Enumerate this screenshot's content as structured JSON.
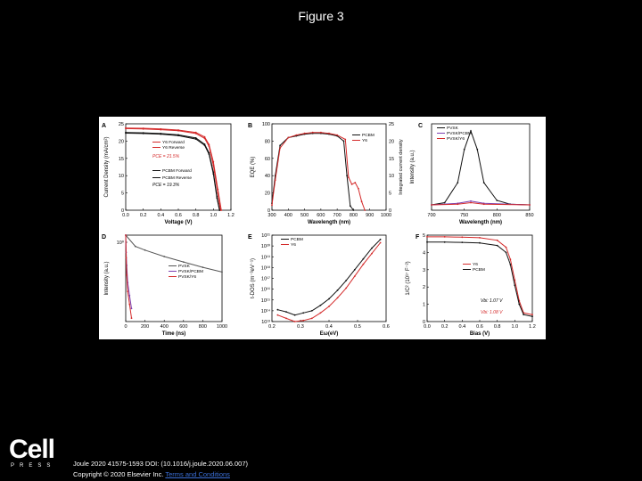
{
  "slide": {
    "title": "Figure 3"
  },
  "footer": {
    "logo_text": "Cell",
    "logo_sub": "PRESS",
    "citation": "Joule 2020 41575-1593 DOI: (10.1016/j.joule.2020.06.007)",
    "copyright_prefix": "Copyright © 2020 Elsevier Inc.",
    "copyright_link": "Terms and Conditions"
  },
  "colors": {
    "black": "#111111",
    "red": "#d42a2a",
    "purple": "#7b3fb0",
    "grey": "#555555"
  },
  "chart_data": [
    {
      "panel": "A",
      "type": "line",
      "xlabel": "Voltage (V)",
      "ylabel": "Current Density (mA/cm²)",
      "xlim": [
        0.0,
        1.2
      ],
      "ylim": [
        0,
        25
      ],
      "xticks": [
        "0.0",
        "0.2",
        "0.4",
        "0.6",
        "0.8",
        "1.0",
        "1.2"
      ],
      "yticks": [
        "0",
        "5",
        "10",
        "15",
        "20",
        "25"
      ],
      "annotations": [
        "PCE = 21.5%",
        "PCE = 19.3%"
      ],
      "series": [
        {
          "name": "Y6 Forward",
          "color": "red",
          "x": [
            0,
            0.2,
            0.4,
            0.6,
            0.8,
            0.9,
            0.95,
            1.0,
            1.05,
            1.08
          ],
          "y": [
            23.6,
            23.5,
            23.3,
            23.0,
            22.2,
            20.8,
            18.5,
            13.0,
            5.0,
            0
          ]
        },
        {
          "name": "Y6 Reverse",
          "color": "red",
          "x": [
            0,
            0.2,
            0.4,
            0.6,
            0.8,
            0.9,
            0.95,
            1.0,
            1.05,
            1.09
          ],
          "y": [
            23.8,
            23.7,
            23.5,
            23.2,
            22.5,
            21.2,
            19.0,
            14.0,
            6.0,
            0
          ]
        },
        {
          "name": "PCBM Forward",
          "color": "black",
          "x": [
            0,
            0.2,
            0.4,
            0.6,
            0.8,
            0.9,
            0.95,
            1.0,
            1.04,
            1.07
          ],
          "y": [
            22.3,
            22.2,
            22.0,
            21.6,
            20.6,
            18.8,
            16.2,
            10.5,
            3.5,
            0
          ]
        },
        {
          "name": "PCBM Reverse",
          "color": "black",
          "x": [
            0,
            0.2,
            0.4,
            0.6,
            0.8,
            0.9,
            0.95,
            1.0,
            1.04,
            1.07
          ],
          "y": [
            22.5,
            22.4,
            22.2,
            21.8,
            20.9,
            19.1,
            16.6,
            11.0,
            4.0,
            0
          ]
        }
      ]
    },
    {
      "panel": "B",
      "type": "line",
      "xlabel": "Wavelength (nm)",
      "ylabel": "EQE (%)",
      "ylabel_right": "Integrated current density",
      "xlim": [
        300,
        1000
      ],
      "ylim": [
        0,
        100
      ],
      "xticks": [
        "300",
        "400",
        "500",
        "600",
        "700",
        "800",
        "900",
        "1000"
      ],
      "yticks": [
        "0",
        "20",
        "40",
        "60",
        "80",
        "100"
      ],
      "yticks_right": [
        "0",
        "5",
        "10",
        "15",
        "20",
        "25"
      ],
      "series": [
        {
          "name": "PCBM",
          "color": "black",
          "x": [
            300,
            320,
            350,
            400,
            450,
            500,
            550,
            600,
            650,
            700,
            740,
            760,
            780,
            800
          ],
          "y": [
            8,
            40,
            75,
            84,
            86,
            88,
            89,
            89,
            88,
            86,
            80,
            40,
            5,
            0
          ]
        },
        {
          "name": "Y6",
          "color": "red",
          "x": [
            300,
            320,
            350,
            400,
            450,
            500,
            550,
            600,
            650,
            700,
            750,
            770,
            790,
            810,
            830,
            850,
            870
          ],
          "y": [
            6,
            35,
            72,
            84,
            87,
            89,
            90,
            90,
            89,
            87,
            82,
            38,
            30,
            32,
            25,
            10,
            0
          ]
        }
      ]
    },
    {
      "panel": "C",
      "type": "line",
      "xlabel": "Wavelength (nm)",
      "ylabel": "Intensity (a.u.)",
      "xlim": [
        700,
        850
      ],
      "xticks": [
        "700",
        "750",
        "800",
        "850"
      ],
      "series": [
        {
          "name": "PVSK",
          "color": "black",
          "x": [
            700,
            720,
            740,
            750,
            760,
            770,
            780,
            800,
            820,
            850
          ],
          "y": [
            0,
            0.03,
            0.3,
            0.75,
            1.0,
            0.75,
            0.3,
            0.06,
            0.01,
            0
          ]
        },
        {
          "name": "PVSK/PCBM",
          "color": "purple",
          "x": [
            700,
            740,
            760,
            780,
            850
          ],
          "y": [
            0,
            0.02,
            0.05,
            0.02,
            0
          ]
        },
        {
          "name": "PVSK/Y6",
          "color": "red",
          "x": [
            700,
            740,
            760,
            780,
            850
          ],
          "y": [
            0,
            0.01,
            0.03,
            0.01,
            0
          ]
        }
      ]
    },
    {
      "panel": "D",
      "type": "line",
      "xlabel": "Time (ns)",
      "ylabel": "Intensity (a.u.)",
      "xlim": [
        0,
        1000
      ],
      "ylim_log": [
        -2,
        0
      ],
      "xticks": [
        "0",
        "200",
        "400",
        "600",
        "800",
        "1000"
      ],
      "yticks": [
        "10⁰"
      ],
      "series": [
        {
          "name": "PVSK",
          "color": "grey",
          "x": [
            0,
            100,
            200,
            400,
            600,
            800,
            1000
          ],
          "y": [
            1.0,
            0.55,
            0.45,
            0.32,
            0.24,
            0.18,
            0.14
          ]
        },
        {
          "name": "PVSK/PCBM",
          "color": "purple",
          "x": [
            0,
            5,
            10,
            20,
            40,
            60
          ],
          "y": [
            1.0,
            0.4,
            0.2,
            0.08,
            0.04,
            0.02
          ]
        },
        {
          "name": "PVSK/Y6",
          "color": "red",
          "x": [
            0,
            5,
            10,
            20,
            40,
            60
          ],
          "y": [
            1.0,
            0.3,
            0.12,
            0.05,
            0.025,
            0.012
          ]
        }
      ]
    },
    {
      "panel": "E",
      "type": "line",
      "xlabel": "Eω(eV)",
      "ylabel": "t-DOS (m⁻³eV⁻¹)",
      "xlim": [
        0.2,
        0.6
      ],
      "ylim_exp": [
        13,
        21
      ],
      "xticks": [
        "0.2",
        "0.3",
        "0.4",
        "0.5",
        "0.6"
      ],
      "yticks": [
        "10¹³",
        "10¹⁴",
        "10¹⁵",
        "10¹⁶",
        "10¹⁷",
        "10¹⁸",
        "10¹⁹",
        "10²⁰",
        "10²¹"
      ],
      "series": [
        {
          "name": "PCBM",
          "color": "black",
          "x": [
            0.22,
            0.25,
            0.28,
            0.31,
            0.34,
            0.37,
            0.4,
            0.43,
            0.46,
            0.49,
            0.52,
            0.55,
            0.58
          ],
          "y": [
            14.1,
            13.9,
            13.6,
            13.8,
            14.0,
            14.5,
            15.1,
            15.9,
            16.8,
            17.8,
            18.8,
            19.8,
            20.6
          ]
        },
        {
          "name": "Y6",
          "color": "red",
          "x": [
            0.22,
            0.25,
            0.28,
            0.31,
            0.34,
            0.37,
            0.4,
            0.43,
            0.46,
            0.49,
            0.52,
            0.55,
            0.58
          ],
          "y": [
            13.6,
            13.3,
            13.0,
            13.1,
            13.3,
            13.8,
            14.4,
            15.2,
            16.1,
            17.2,
            18.3,
            19.3,
            20.3
          ]
        }
      ]
    },
    {
      "panel": "F",
      "type": "line",
      "xlabel": "Bias (V)",
      "ylabel": "1/C² (10¹⁷ F⁻²)",
      "xlim": [
        0.0,
        1.2
      ],
      "ylim": [
        0,
        5
      ],
      "xticks": [
        "0.0",
        "0.2",
        "0.4",
        "0.6",
        "0.8",
        "1.0",
        "1.2"
      ],
      "yticks": [
        "0",
        "1",
        "2",
        "3",
        "4",
        "5"
      ],
      "annotations": [
        "Vbi: 1.07 V",
        "Vbi: 1.08 V"
      ],
      "series": [
        {
          "name": "Y6",
          "color": "red",
          "x": [
            0,
            0.2,
            0.4,
            0.6,
            0.8,
            0.9,
            0.95,
            1.0,
            1.05,
            1.1,
            1.2
          ],
          "y": [
            4.9,
            4.9,
            4.88,
            4.85,
            4.7,
            4.3,
            3.6,
            2.4,
            1.2,
            0.5,
            0.4
          ]
        },
        {
          "name": "PCBM",
          "color": "black",
          "x": [
            0,
            0.2,
            0.4,
            0.6,
            0.8,
            0.9,
            0.95,
            1.0,
            1.05,
            1.1,
            1.2
          ],
          "y": [
            4.6,
            4.6,
            4.58,
            4.55,
            4.4,
            4.0,
            3.3,
            2.1,
            1.0,
            0.4,
            0.3
          ]
        }
      ]
    }
  ]
}
